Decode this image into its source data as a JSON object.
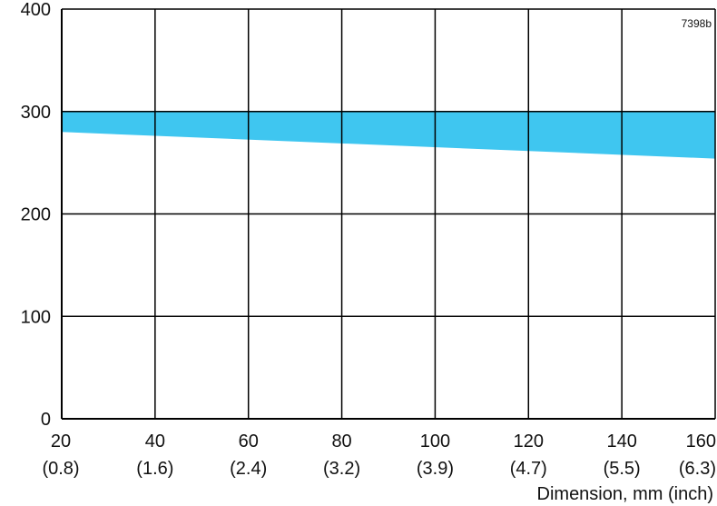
{
  "figure_code": "7398b",
  "chart_data": {
    "type": "area",
    "title": "",
    "xlabel": "Dimension, mm (inch)",
    "ylabel": "",
    "xlim": [
      20,
      160
    ],
    "ylim": [
      0,
      400
    ],
    "grid": true,
    "x_ticks": [
      {
        "value": 20,
        "label": "20",
        "sublabel": "(0.8)"
      },
      {
        "value": 40,
        "label": "40",
        "sublabel": "(1.6)"
      },
      {
        "value": 60,
        "label": "60",
        "sublabel": "(2.4)"
      },
      {
        "value": 80,
        "label": "80",
        "sublabel": "(3.2)"
      },
      {
        "value": 100,
        "label": "100",
        "sublabel": "(3.9)"
      },
      {
        "value": 120,
        "label": "120",
        "sublabel": "(4.7)"
      },
      {
        "value": 140,
        "label": "140",
        "sublabel": "(5.5)"
      },
      {
        "value": 160,
        "label": "160",
        "sublabel": "(6.3)"
      }
    ],
    "y_ticks": [
      {
        "value": 0,
        "label": "0"
      },
      {
        "value": 100,
        "label": "100"
      },
      {
        "value": 200,
        "label": "200"
      },
      {
        "value": 300,
        "label": "300"
      },
      {
        "value": 400,
        "label": "400"
      }
    ],
    "band": {
      "color": "#3fc6f0",
      "upper": [
        {
          "x": 20,
          "y": 300
        },
        {
          "x": 160,
          "y": 300
        }
      ],
      "lower": [
        {
          "x": 20,
          "y": 280
        },
        {
          "x": 160,
          "y": 254
        }
      ]
    }
  }
}
